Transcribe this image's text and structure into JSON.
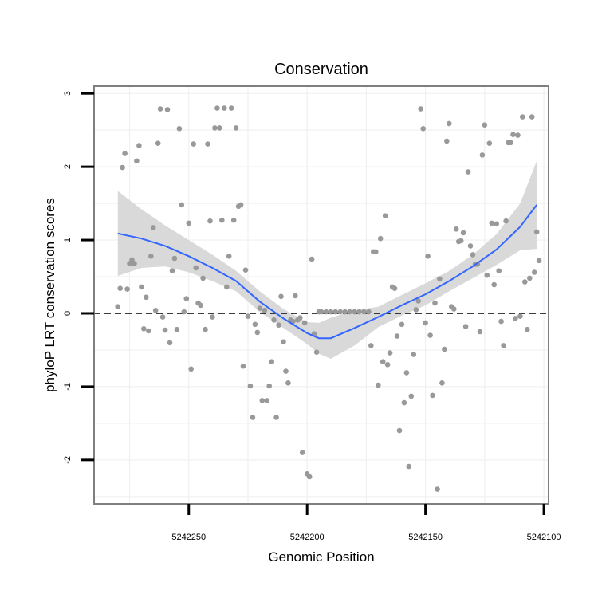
{
  "chart_data": {
    "type": "scatter",
    "title": "Conservation",
    "xlabel": "Genomic Position",
    "ylabel": "phyloP LRT conservation scores",
    "x_reversed": true,
    "xlim": [
      5242290,
      5242098
    ],
    "ylim": [
      -2.6,
      3.1
    ],
    "xticks": [
      5242250,
      5242200,
      5242150,
      5242100
    ],
    "xtick_labels": [
      "5242250",
      "5242200",
      "5242150",
      "5242100"
    ],
    "yticks": [
      3,
      2,
      1,
      0,
      -1,
      -2
    ],
    "ytick_labels": [
      "3",
      "2",
      "1",
      "0",
      "-1",
      "-2"
    ],
    "grid": true,
    "reference_line": {
      "y": 0,
      "style": "dashed",
      "color": "#000000"
    },
    "point_color": "#999999",
    "smooth_color": "#3366ff",
    "band_color": "#d9d9d9",
    "points": [
      [
        5242280,
        0.09
      ],
      [
        5242279,
        0.34
      ],
      [
        5242278,
        1.99
      ],
      [
        5242277,
        2.18
      ],
      [
        5242276,
        0.33
      ],
      [
        5242275,
        0.68
      ],
      [
        5242274,
        0.73
      ],
      [
        5242273,
        0.68
      ],
      [
        5242272,
        2.08
      ],
      [
        5242271,
        2.29
      ],
      [
        5242270,
        0.36
      ],
      [
        5242269,
        -0.21
      ],
      [
        5242268,
        0.22
      ],
      [
        5242267,
        -0.24
      ],
      [
        5242266,
        0.78
      ],
      [
        5242265,
        1.17
      ],
      [
        5242264,
        0.04
      ],
      [
        5242263,
        2.32
      ],
      [
        5242262,
        2.79
      ],
      [
        5242261,
        -0.05
      ],
      [
        5242260,
        -0.23
      ],
      [
        5242259,
        2.78
      ],
      [
        5242258,
        -0.4
      ],
      [
        5242257,
        0.58
      ],
      [
        5242256,
        0.75
      ],
      [
        5242255,
        -0.22
      ],
      [
        5242254,
        2.52
      ],
      [
        5242253,
        1.48
      ],
      [
        5242252,
        0.02
      ],
      [
        5242251,
        0.2
      ],
      [
        5242250,
        1.23
      ],
      [
        5242249,
        -0.76
      ],
      [
        5242248,
        2.31
      ],
      [
        5242247,
        0.62
      ],
      [
        5242246,
        0.14
      ],
      [
        5242245,
        0.11
      ],
      [
        5242244,
        0.48
      ],
      [
        5242243,
        -0.22
      ],
      [
        5242242,
        2.31
      ],
      [
        5242241,
        1.26
      ],
      [
        5242240,
        -0.05
      ],
      [
        5242239,
        2.53
      ],
      [
        5242238,
        2.8
      ],
      [
        5242237,
        2.53
      ],
      [
        5242236,
        1.27
      ],
      [
        5242235,
        2.8
      ],
      [
        5242234,
        0.36
      ],
      [
        5242233,
        0.78
      ],
      [
        5242232,
        2.8
      ],
      [
        5242231,
        1.27
      ],
      [
        5242230,
        2.53
      ],
      [
        5242229,
        1.46
      ],
      [
        5242228,
        1.48
      ],
      [
        5242227,
        -0.72
      ],
      [
        5242226,
        0.59
      ],
      [
        5242225,
        -0.04
      ],
      [
        5242224,
        -0.99
      ],
      [
        5242223,
        -1.42
      ],
      [
        5242222,
        -0.15
      ],
      [
        5242221,
        -0.26
      ],
      [
        5242220,
        0.07
      ],
      [
        5242219,
        -1.19
      ],
      [
        5242218,
        0.04
      ],
      [
        5242217,
        -1.19
      ],
      [
        5242216,
        -0.99
      ],
      [
        5242215,
        -0.66
      ],
      [
        5242214,
        -0.09
      ],
      [
        5242213,
        -1.42
      ],
      [
        5242212,
        -0.16
      ],
      [
        5242211,
        0.23
      ],
      [
        5242210,
        -0.39
      ],
      [
        5242209,
        -0.79
      ],
      [
        5242208,
        -0.95
      ],
      [
        5242207,
        -0.09
      ],
      [
        5242206,
        -0.11
      ],
      [
        5242205,
        0.24
      ],
      [
        5242204,
        -0.09
      ],
      [
        5242203,
        -0.06
      ],
      [
        5242202,
        -1.9
      ],
      [
        5242201,
        -0.13
      ],
      [
        5242200,
        -2.19
      ],
      [
        5242199,
        -2.23
      ],
      [
        5242198,
        0.74
      ],
      [
        5242197,
        -0.28
      ],
      [
        5242196,
        -0.53
      ],
      [
        5242195,
        0.02
      ],
      [
        5242194,
        0.02
      ],
      [
        5242192,
        0.02
      ],
      [
        5242190,
        0.02
      ],
      [
        5242188,
        0.02
      ],
      [
        5242186,
        0.02
      ],
      [
        5242184,
        0.02
      ],
      [
        5242182,
        0.02
      ],
      [
        5242180,
        0.02
      ],
      [
        5242178,
        0.02
      ],
      [
        5242176,
        0.02
      ],
      [
        5242174,
        0.02
      ],
      [
        5242173,
        -0.44
      ],
      [
        5242172,
        0.84
      ],
      [
        5242171,
        0.84
      ],
      [
        5242170,
        -0.98
      ],
      [
        5242169,
        1.02
      ],
      [
        5242168,
        -0.66
      ],
      [
        5242167,
        1.33
      ],
      [
        5242166,
        -0.7
      ],
      [
        5242165,
        -0.54
      ],
      [
        5242164,
        0.36
      ],
      [
        5242163,
        0.34
      ],
      [
        5242162,
        -0.31
      ],
      [
        5242161,
        -1.6
      ],
      [
        5242160,
        -0.15
      ],
      [
        5242159,
        -1.22
      ],
      [
        5242158,
        -0.81
      ],
      [
        5242157,
        -2.09
      ],
      [
        5242156,
        -1.13
      ],
      [
        5242155,
        -0.56
      ],
      [
        5242154,
        0.05
      ],
      [
        5242153,
        0.17
      ],
      [
        5242152,
        2.79
      ],
      [
        5242151,
        2.52
      ],
      [
        5242150,
        -0.13
      ],
      [
        5242149,
        0.78
      ],
      [
        5242148,
        -0.3
      ],
      [
        5242147,
        -1.12
      ],
      [
        5242146,
        0.14
      ],
      [
        5242145,
        -2.4
      ],
      [
        5242144,
        0.47
      ],
      [
        5242143,
        -0.95
      ],
      [
        5242142,
        -0.49
      ],
      [
        5242141,
        2.35
      ],
      [
        5242140,
        2.59
      ],
      [
        5242139,
        0.09
      ],
      [
        5242138,
        0.06
      ],
      [
        5242137,
        1.15
      ],
      [
        5242136,
        0.98
      ],
      [
        5242135,
        0.99
      ],
      [
        5242134,
        1.1
      ],
      [
        5242133,
        -0.18
      ],
      [
        5242132,
        1.93
      ],
      [
        5242131,
        0.92
      ],
      [
        5242130,
        0.8
      ],
      [
        5242129,
        0.67
      ],
      [
        5242128,
        0.67
      ],
      [
        5242127,
        -0.25
      ],
      [
        5242126,
        2.16
      ],
      [
        5242125,
        2.57
      ],
      [
        5242124,
        0.52
      ],
      [
        5242123,
        2.32
      ],
      [
        5242122,
        1.23
      ],
      [
        5242121,
        0.39
      ],
      [
        5242120,
        1.22
      ],
      [
        5242119,
        0.58
      ],
      [
        5242118,
        -0.11
      ],
      [
        5242117,
        -0.44
      ],
      [
        5242116,
        1.26
      ],
      [
        5242115,
        2.33
      ],
      [
        5242114,
        2.33
      ],
      [
        5242113,
        2.44
      ],
      [
        5242112,
        -0.07
      ],
      [
        5242111,
        2.43
      ],
      [
        5242110,
        -0.04
      ],
      [
        5242109,
        2.68
      ],
      [
        5242108,
        0.43
      ],
      [
        5242107,
        -0.22
      ],
      [
        5242106,
        0.48
      ],
      [
        5242105,
        2.68
      ],
      [
        5242104,
        0.56
      ],
      [
        5242103,
        1.11
      ],
      [
        5242102,
        0.72
      ]
    ],
    "smooth_fit": {
      "x": [
        5242280,
        5242270,
        5242260,
        5242250,
        5242240,
        5242230,
        5242220,
        5242210,
        5242200,
        5242195,
        5242190,
        5242180,
        5242170,
        5242160,
        5242150,
        5242140,
        5242130,
        5242120,
        5242110,
        5242103
      ],
      "y": [
        1.09,
        1.02,
        0.92,
        0.78,
        0.62,
        0.44,
        0.16,
        -0.07,
        -0.27,
        -0.34,
        -0.34,
        -0.2,
        -0.05,
        0.11,
        0.26,
        0.44,
        0.64,
        0.87,
        1.18,
        1.48
      ],
      "lower": [
        0.51,
        0.62,
        0.64,
        0.56,
        0.44,
        0.3,
        0.02,
        -0.2,
        -0.42,
        -0.55,
        -0.62,
        -0.44,
        -0.19,
        -0.03,
        0.11,
        0.3,
        0.48,
        0.66,
        0.86,
        0.88
      ],
      "upper": [
        1.67,
        1.42,
        1.2,
        1.0,
        0.8,
        0.58,
        0.3,
        0.06,
        -0.12,
        -0.13,
        -0.06,
        0.04,
        0.09,
        0.25,
        0.41,
        0.58,
        0.8,
        1.08,
        1.5,
        2.08
      ]
    }
  }
}
